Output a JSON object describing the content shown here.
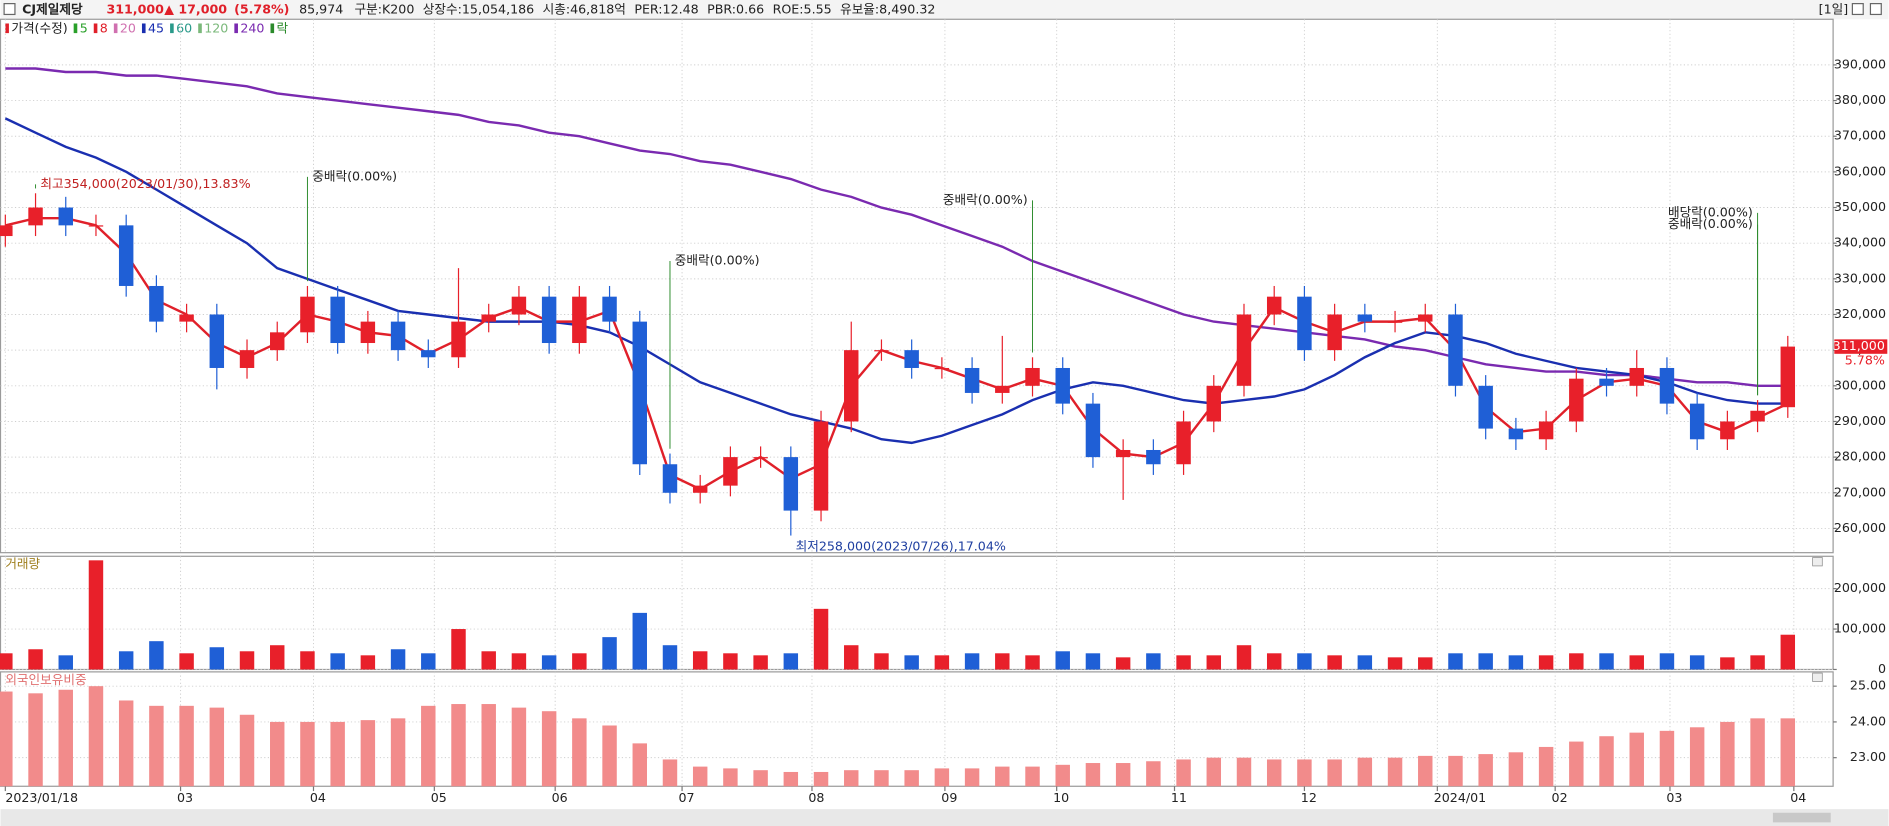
{
  "header": {
    "name": "CJ제일제당",
    "price": "311,000",
    "change": "▲ 17,000",
    "change_pct": "(5.78%)",
    "volume": "85,974",
    "info": [
      "구분:K200",
      "상장수:15,054,186",
      "시총:46,818억",
      "PER:12.48",
      "PBR:0.66",
      "ROE:5.55",
      "유보율:8,490.32"
    ],
    "period": "[1일]"
  },
  "chart_data": [
    {
      "type": "candlestick",
      "legend": [
        {
          "name": "가격(수정)",
          "color": "#e0202a"
        },
        {
          "name": "5",
          "color": "#2aa02a"
        },
        {
          "name": "8",
          "color": "#e0202a"
        },
        {
          "name": "20",
          "color": "#d070b0"
        },
        {
          "name": "45",
          "color": "#1a2fb0"
        },
        {
          "name": "60",
          "color": "#2a9a8a"
        },
        {
          "name": "120",
          "color": "#7ab87a"
        },
        {
          "name": "240",
          "color": "#7a2ab0"
        },
        {
          "name": "락",
          "color": "#2a8a2a"
        }
      ],
      "up_color": "#e8202a",
      "down_color": "#1f5fd6",
      "open": [
        342000,
        345000,
        350000,
        345000,
        345000,
        328000,
        318000,
        320000,
        305000,
        310000,
        315000,
        325000,
        312000,
        318000,
        310000,
        308000,
        318000,
        320000,
        325000,
        312000,
        325000,
        318000,
        278000,
        270000,
        272000,
        280000,
        280000,
        265000,
        290000,
        310000,
        310000,
        305000,
        305000,
        298000,
        300000,
        305000,
        295000,
        280000,
        282000,
        278000,
        290000,
        300000,
        320000,
        325000,
        310000,
        320000,
        318000,
        318000,
        320000,
        300000,
        288000,
        285000,
        290000,
        302000,
        300000,
        305000,
        295000,
        285000,
        290000,
        294000
      ],
      "high": [
        348000,
        354000,
        353000,
        348000,
        348000,
        331000,
        323000,
        323000,
        313000,
        318000,
        328000,
        328000,
        321000,
        321000,
        313000,
        333000,
        323000,
        328000,
        328000,
        328000,
        328000,
        321000,
        281000,
        275000,
        283000,
        283000,
        283000,
        293000,
        318000,
        313000,
        313000,
        308000,
        308000,
        314000,
        308000,
        308000,
        298000,
        285000,
        285000,
        293000,
        303000,
        323000,
        328000,
        328000,
        323000,
        323000,
        321000,
        323000,
        323000,
        303000,
        291000,
        293000,
        305000,
        305000,
        310000,
        308000,
        298000,
        293000,
        296000,
        314000
      ],
      "low": [
        339000,
        342000,
        342000,
        342000,
        325000,
        315000,
        315000,
        299000,
        302000,
        307000,
        312000,
        309000,
        309000,
        307000,
        305000,
        305000,
        315000,
        317000,
        309000,
        309000,
        315000,
        275000,
        267000,
        267000,
        269000,
        277000,
        258000,
        262000,
        287000,
        307000,
        302000,
        302000,
        295000,
        295000,
        297000,
        292000,
        277000,
        268000,
        275000,
        275000,
        287000,
        297000,
        317000,
        307000,
        307000,
        315000,
        315000,
        315000,
        297000,
        285000,
        282000,
        282000,
        287000,
        297000,
        297000,
        292000,
        282000,
        282000,
        287000,
        291000
      ],
      "close": [
        345000,
        350000,
        345000,
        345000,
        328000,
        318000,
        320000,
        305000,
        310000,
        315000,
        325000,
        312000,
        318000,
        310000,
        308000,
        318000,
        320000,
        325000,
        312000,
        325000,
        318000,
        278000,
        270000,
        272000,
        280000,
        280000,
        265000,
        290000,
        310000,
        310000,
        305000,
        305000,
        298000,
        300000,
        305000,
        295000,
        280000,
        282000,
        278000,
        290000,
        300000,
        320000,
        325000,
        310000,
        320000,
        318000,
        318000,
        320000,
        300000,
        288000,
        285000,
        290000,
        302000,
        300000,
        305000,
        295000,
        285000,
        290000,
        293000,
        311000
      ],
      "series": [
        {
          "name": "240",
          "color": "#7a2ab0",
          "values": [
            389000,
            389000,
            388000,
            388000,
            387000,
            387000,
            386000,
            385000,
            384000,
            382000,
            381000,
            380000,
            379000,
            378000,
            377000,
            376000,
            374000,
            373000,
            371000,
            370000,
            368000,
            366000,
            365000,
            363000,
            362000,
            360000,
            358000,
            355000,
            353000,
            350000,
            348000,
            345000,
            342000,
            339000,
            335000,
            332000,
            329000,
            326000,
            323000,
            320000,
            318000,
            317000,
            316000,
            315000,
            314000,
            313000,
            311000,
            310000,
            308000,
            306000,
            305000,
            304000,
            304000,
            303000,
            303000,
            302000,
            301000,
            301000,
            300000,
            300000
          ]
        },
        {
          "name": "45",
          "color": "#1a2fb0",
          "values": [
            375000,
            371000,
            367000,
            364000,
            360000,
            355000,
            350000,
            345000,
            340000,
            333000,
            330000,
            327000,
            324000,
            321000,
            320000,
            319000,
            318000,
            318000,
            318000,
            317000,
            315000,
            311000,
            306000,
            301000,
            298000,
            295000,
            292000,
            290000,
            288000,
            285000,
            284000,
            286000,
            289000,
            292000,
            296000,
            299000,
            301000,
            300000,
            298000,
            296000,
            295000,
            296000,
            297000,
            299000,
            303000,
            308000,
            312000,
            315000,
            314000,
            312000,
            309000,
            307000,
            305000,
            304000,
            303000,
            301000,
            298000,
            296000,
            295000,
            295000
          ]
        },
        {
          "name": "8",
          "color": "#e0202a",
          "values": [
            345000,
            347000,
            347000,
            345000,
            337000,
            324000,
            320000,
            312000,
            308000,
            312000,
            320000,
            318000,
            315000,
            314000,
            309000,
            313000,
            319000,
            322000,
            318000,
            318000,
            321000,
            300000,
            275000,
            271000,
            276000,
            280000,
            274000,
            278000,
            300000,
            310000,
            307000,
            305000,
            302000,
            299000,
            302000,
            300000,
            288000,
            281000,
            280000,
            284000,
            295000,
            310000,
            322000,
            318000,
            315000,
            318000,
            318000,
            319000,
            310000,
            294000,
            287000,
            288000,
            296000,
            301000,
            302000,
            300000,
            290000,
            287000,
            291000,
            295000
          ]
        }
      ],
      "annotations": [
        {
          "text": "최고354,000(2023/01/30),13.83%",
          "x": 1,
          "y": 356500,
          "color": "#c02020",
          "align": "left"
        },
        {
          "text": "최저258,000(2023/07/26),17.04%",
          "x": 26,
          "y": 254800,
          "color": "#1f3fa0",
          "align": "left"
        },
        {
          "text": "중배락(0.00%)",
          "x": 10,
          "y": 358600,
          "color": "#222",
          "align": "left"
        },
        {
          "text": "중배락(0.00%)",
          "x": 22,
          "y": 335000,
          "color": "#222",
          "align": "left"
        },
        {
          "text": "중배락(0.00%)",
          "x": 34,
          "y": 352000,
          "color": "#222",
          "align": "right"
        },
        {
          "text": "배당락(0.00%)",
          "x": 58,
          "y": 348500,
          "color": "#222",
          "align": "right"
        },
        {
          "text": "중배락(0.00%)",
          "x": 58,
          "y": 345200,
          "color": "#222",
          "align": "right"
        }
      ],
      "last_price_label": "311,000",
      "last_change_label": "5.78%",
      "xlim": [
        -0.16,
        60.5
      ],
      "xticks": [
        {
          "value": 0,
          "label": "2023/01/18"
        },
        {
          "value": 5.8,
          "label": "03"
        },
        {
          "value": 10.2,
          "label": "04"
        },
        {
          "value": 14.2,
          "label": "05"
        },
        {
          "value": 18.2,
          "label": "06"
        },
        {
          "value": 22.4,
          "label": "07"
        },
        {
          "value": 26.7,
          "label": "08"
        },
        {
          "value": 31.1,
          "label": "09"
        },
        {
          "value": 34.8,
          "label": "10"
        },
        {
          "value": 38.7,
          "label": "11"
        },
        {
          "value": 43.0,
          "label": "12"
        },
        {
          "value": 47.4,
          "label": "2024/01"
        },
        {
          "value": 51.3,
          "label": "02"
        },
        {
          "value": 55.1,
          "label": "03"
        },
        {
          "value": 59.2,
          "label": "04"
        }
      ],
      "ylim": [
        253200,
        402800
      ],
      "yticks": [
        {
          "value": 260000,
          "label": "260,000"
        },
        {
          "value": 270000,
          "label": "270,000"
        },
        {
          "value": 280000,
          "label": "280,000"
        },
        {
          "value": 290000,
          "label": "290,000"
        },
        {
          "value": 300000,
          "label": "300,000"
        },
        {
          "value": 310000,
          "label": "310,000"
        },
        {
          "value": 320000,
          "label": "320,000"
        },
        {
          "value": 330000,
          "label": "330,000"
        },
        {
          "value": 340000,
          "label": "340,000"
        },
        {
          "value": 350000,
          "label": "350,000"
        },
        {
          "value": 360000,
          "label": "360,000"
        },
        {
          "value": 370000,
          "label": "370,000"
        },
        {
          "value": 380000,
          "label": "380,000"
        },
        {
          "value": 390000,
          "label": "390,000"
        }
      ],
      "grid": true
    },
    {
      "type": "bar",
      "title": "거래량",
      "values": [
        40000,
        50000,
        35000,
        270000,
        45000,
        70000,
        40000,
        55000,
        45000,
        60000,
        45000,
        40000,
        35000,
        50000,
        40000,
        100000,
        45000,
        40000,
        35000,
        40000,
        80000,
        140000,
        60000,
        45000,
        40000,
        35000,
        40000,
        150000,
        60000,
        40000,
        35000,
        35000,
        40000,
        40000,
        35000,
        45000,
        40000,
        30000,
        40000,
        35000,
        35000,
        60000,
        40000,
        40000,
        35000,
        35000,
        30000,
        30000,
        40000,
        40000,
        35000,
        35000,
        40000,
        40000,
        35000,
        40000,
        35000,
        30000,
        35000,
        85974
      ],
      "ylim": [
        0,
        280000
      ],
      "yticks": [
        0,
        {
          "value": 100000,
          "label": "100,000"
        },
        {
          "value": 200000,
          "label": "200,000"
        }
      ],
      "grid": true
    },
    {
      "type": "bar",
      "title": "외국인보유비중",
      "color": "#f28b8b",
      "values": [
        24.85,
        24.8,
        24.9,
        25.0,
        24.6,
        24.45,
        24.45,
        24.4,
        24.2,
        24.0,
        24.0,
        24.0,
        24.05,
        24.1,
        24.45,
        24.5,
        24.5,
        24.4,
        24.3,
        24.1,
        23.9,
        23.4,
        22.95,
        22.75,
        22.7,
        22.65,
        22.6,
        22.6,
        22.65,
        22.65,
        22.65,
        22.7,
        22.7,
        22.75,
        22.75,
        22.8,
        22.85,
        22.85,
        22.9,
        22.95,
        23.0,
        23.0,
        22.95,
        22.95,
        22.95,
        23.0,
        23.0,
        23.05,
        23.05,
        23.1,
        23.15,
        23.3,
        23.45,
        23.6,
        23.7,
        23.75,
        23.85,
        24.0,
        24.1,
        24.1
      ],
      "ylim": [
        22.2,
        25.4
      ],
      "yticks": [
        {
          "value": 23,
          "label": "23.00"
        },
        {
          "value": 24,
          "label": "24.00"
        },
        {
          "value": 25,
          "label": "25.00"
        }
      ],
      "grid": true
    }
  ]
}
